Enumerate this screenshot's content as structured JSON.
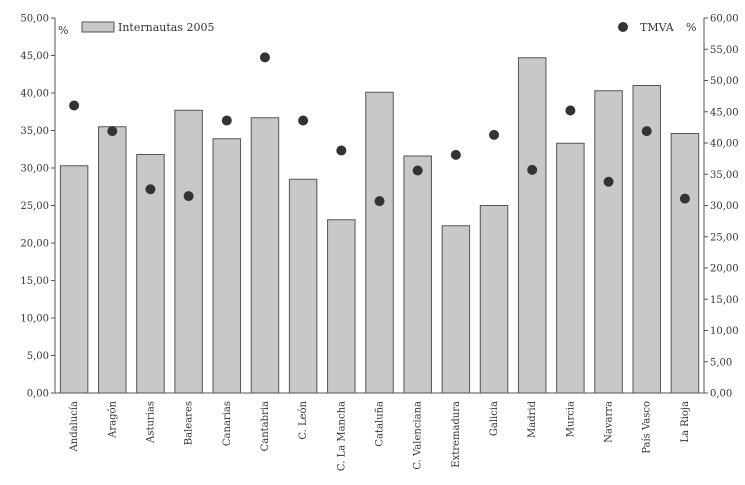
{
  "chart_data": {
    "type": "bar",
    "categories": [
      "Andalucía",
      "Aragón",
      "Asturias",
      "Baleares",
      "Canarias",
      "Cantabria",
      "C. León",
      "C. La Mancha",
      "Cataluña",
      "C. Valenciana",
      "Extremadura",
      "Galicia",
      "Madrid",
      "Murcia",
      "Navarra",
      "País Vasco",
      "La Rioja"
    ],
    "series": [
      {
        "name": "Internautas 2005",
        "axis": "left",
        "kind": "bar",
        "color": "#c8c8c8",
        "values": [
          30.3,
          35.5,
          31.8,
          37.7,
          33.9,
          36.7,
          28.5,
          23.1,
          40.1,
          31.6,
          22.3,
          25.0,
          44.7,
          33.3,
          40.3,
          41.0,
          34.6
        ]
      },
      {
        "name": "TMVA",
        "axis": "right",
        "kind": "scatter",
        "color": "#333333",
        "values": [
          46.0,
          41.9,
          32.6,
          31.5,
          43.6,
          53.7,
          43.6,
          38.8,
          30.7,
          35.6,
          38.1,
          41.3,
          35.7,
          45.2,
          33.8,
          41.9,
          31.1
        ]
      }
    ],
    "ylabel_left": "%",
    "ylabel_right": "%",
    "ylim_left": [
      0,
      50
    ],
    "ylim_right": [
      0,
      60
    ],
    "yticks_left": [
      "0,00",
      "5,00",
      "10,00",
      "15,00",
      "20,00",
      "25,00",
      "30,00",
      "35,00",
      "40,00",
      "45,00",
      "50,00"
    ],
    "yticks_right": [
      "0,00",
      "5,00",
      "10,00",
      "15,00",
      "20,00",
      "25,00",
      "30,00",
      "35,00",
      "40,00",
      "45,00",
      "50,00",
      "55,00",
      "60,00"
    ],
    "legend_left_label": "Internautas 2005",
    "legend_right_label": "TMVA",
    "legend_placement": "top",
    "grid": false
  }
}
